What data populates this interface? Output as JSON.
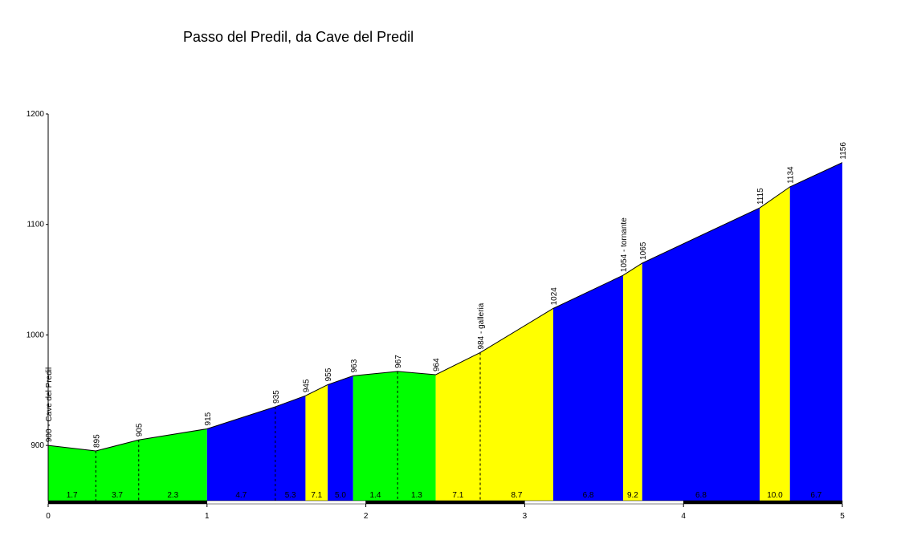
{
  "chart_data": {
    "type": "area",
    "title": "Passo del Predil, da Cave del Predil",
    "xlim": [
      0,
      5
    ],
    "ylim": [
      850,
      1200
    ],
    "x_ticks": [
      0,
      1,
      2,
      3,
      4,
      5
    ],
    "y_ticks": [
      900,
      1000,
      1100,
      1200
    ],
    "grid": false,
    "points": [
      {
        "x": 0.0,
        "y": 900,
        "label": "900 - Cave del Predil"
      },
      {
        "x": 0.3,
        "y": 895,
        "label": "895"
      },
      {
        "x": 0.57,
        "y": 905,
        "label": "905"
      },
      {
        "x": 1.0,
        "y": 915,
        "label": "915"
      },
      {
        "x": 1.43,
        "y": 935,
        "label": "935"
      },
      {
        "x": 1.62,
        "y": 945,
        "label": "945"
      },
      {
        "x": 1.76,
        "y": 955,
        "label": "955"
      },
      {
        "x": 1.92,
        "y": 963,
        "label": "963"
      },
      {
        "x": 2.2,
        "y": 967,
        "label": "967"
      },
      {
        "x": 2.44,
        "y": 964,
        "label": "964"
      },
      {
        "x": 2.72,
        "y": 984,
        "label": "984 - galleria"
      },
      {
        "x": 3.18,
        "y": 1024,
        "label": "1024"
      },
      {
        "x": 3.62,
        "y": 1054,
        "label": "1054 - tornante"
      },
      {
        "x": 3.74,
        "y": 1065,
        "label": "1065"
      },
      {
        "x": 4.48,
        "y": 1115,
        "label": "1115"
      },
      {
        "x": 4.67,
        "y": 1134,
        "label": "1134"
      },
      {
        "x": 5.0,
        "y": 1156,
        "label": "1156"
      }
    ],
    "segments": [
      {
        "from": 0.0,
        "to": 1.0,
        "color": "#00ff00",
        "solid_end": true
      },
      {
        "from": 1.0,
        "to": 1.62,
        "color": "#0000ff",
        "solid_end": true
      },
      {
        "from": 1.62,
        "to": 1.76,
        "color": "#ffff00",
        "solid_end": true
      },
      {
        "from": 1.76,
        "to": 1.92,
        "color": "#0000ff",
        "solid_end": true
      },
      {
        "from": 1.92,
        "to": 2.44,
        "color": "#00ff00",
        "solid_end": true
      },
      {
        "from": 2.44,
        "to": 3.18,
        "color": "#ffff00",
        "solid_end": true
      },
      {
        "from": 3.18,
        "to": 3.62,
        "color": "#0000ff",
        "solid_end": true
      },
      {
        "from": 3.62,
        "to": 3.74,
        "color": "#ffff00",
        "solid_end": true
      },
      {
        "from": 3.74,
        "to": 4.48,
        "color": "#0000ff",
        "solid_end": true
      },
      {
        "from": 4.48,
        "to": 4.67,
        "color": "#ffff00",
        "solid_end": true
      },
      {
        "from": 4.67,
        "to": 5.0,
        "color": "#0000ff",
        "solid_end": true
      }
    ],
    "dashed_dividers": [
      0.3,
      0.57,
      1.43,
      2.2,
      2.72
    ],
    "gradients": [
      {
        "x": 0.15,
        "value": "1.7"
      },
      {
        "x": 0.435,
        "value": "3.7"
      },
      {
        "x": 0.785,
        "value": "2.3"
      },
      {
        "x": 1.215,
        "value": "4.7"
      },
      {
        "x": 1.525,
        "value": "5.3"
      },
      {
        "x": 1.69,
        "value": "7.1"
      },
      {
        "x": 1.84,
        "value": "5.0"
      },
      {
        "x": 2.06,
        "value": "1.4"
      },
      {
        "x": 2.32,
        "value": "1.3"
      },
      {
        "x": 2.58,
        "value": "7.1"
      },
      {
        "x": 2.95,
        "value": "8.7"
      },
      {
        "x": 3.4,
        "value": "6.8"
      },
      {
        "x": 3.68,
        "value": "9.2"
      },
      {
        "x": 4.11,
        "value": "6.8"
      },
      {
        "x": 4.575,
        "value": "10.0"
      },
      {
        "x": 4.835,
        "value": "6.7"
      }
    ],
    "distance_bar": {
      "colors": [
        "#000000",
        "#ffffff"
      ]
    }
  }
}
